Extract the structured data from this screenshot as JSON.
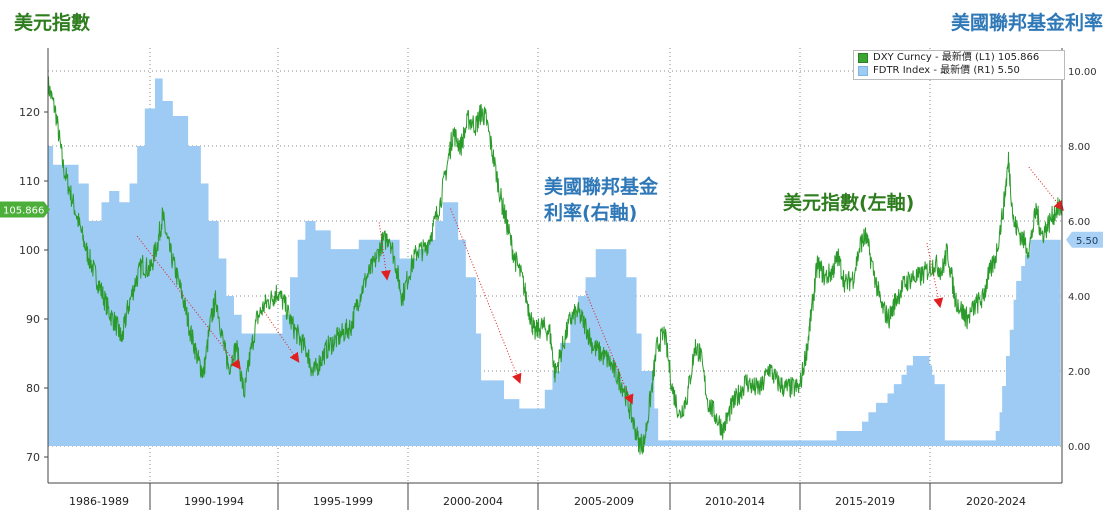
{
  "titles": {
    "left": "美元指數",
    "right": "美國聯邦基金利率"
  },
  "annotations": {
    "fed_line1": "美國聯邦基金",
    "fed_line2": "利率(右軸)",
    "dxy": "美元指數(左軸)"
  },
  "legend": {
    "dxy": "DXY Curncy - 最新價 (L1) 105.866",
    "fdtr": "FDTR Index - 最新價 (R1) 5.50"
  },
  "colors": {
    "dxy_line": "#2a9a2a",
    "fdtr_fill": "#9ecbf3",
    "arrow": "#e02020",
    "left_title": "#2e7d1e",
    "right_title": "#2f78b8"
  },
  "chart_data": {
    "type": "line",
    "xrange": [
      1985,
      2024.8
    ],
    "x_period_labels": [
      "1986-1989",
      "1990-1994",
      "1995-1999",
      "2000-2004",
      "2005-2009",
      "2010-2014",
      "2015-2019",
      "2020-2024"
    ],
    "left_axis": {
      "ticks": [
        "70",
        "80",
        "90",
        "100",
        "110",
        "120"
      ],
      "range": [
        70,
        126
      ]
    },
    "right_axis": {
      "ticks": [
        "0.00",
        "2.00",
        "4.00",
        "6.00",
        "8.00",
        "10.00"
      ],
      "range": [
        0,
        10
      ]
    },
    "last_value_badges": {
      "dxy": "105.866",
      "fdtr": "5.50"
    },
    "series": [
      {
        "name": "DXY Curncy",
        "axis": "left",
        "points": [
          [
            1985.0,
            124
          ],
          [
            1985.3,
            120
          ],
          [
            1985.6,
            112
          ],
          [
            1985.9,
            108
          ],
          [
            1986.2,
            104
          ],
          [
            1986.5,
            100
          ],
          [
            1986.8,
            97
          ],
          [
            1987.1,
            94
          ],
          [
            1987.4,
            91
          ],
          [
            1987.7,
            89
          ],
          [
            1987.9,
            87
          ],
          [
            1988.1,
            91
          ],
          [
            1988.4,
            95
          ],
          [
            1988.7,
            98
          ],
          [
            1989.0,
            97
          ],
          [
            1989.3,
            101
          ],
          [
            1989.5,
            105
          ],
          [
            1989.7,
            101
          ],
          [
            1990.0,
            97
          ],
          [
            1990.3,
            93
          ],
          [
            1990.6,
            88
          ],
          [
            1990.9,
            84
          ],
          [
            1991.1,
            82
          ],
          [
            1991.4,
            90
          ],
          [
            1991.6,
            93
          ],
          [
            1991.9,
            86
          ],
          [
            1992.1,
            83
          ],
          [
            1992.4,
            86
          ],
          [
            1992.7,
            79
          ],
          [
            1992.9,
            84
          ],
          [
            1993.2,
            90
          ],
          [
            1993.5,
            92
          ],
          [
            1993.8,
            93
          ],
          [
            1994.0,
            94
          ],
          [
            1994.3,
            92
          ],
          [
            1994.6,
            89
          ],
          [
            1994.9,
            87
          ],
          [
            1995.2,
            85
          ],
          [
            1995.4,
            82
          ],
          [
            1995.7,
            84
          ],
          [
            1996.0,
            86
          ],
          [
            1996.3,
            87
          ],
          [
            1996.6,
            88
          ],
          [
            1996.9,
            89
          ],
          [
            1997.2,
            93
          ],
          [
            1997.5,
            96
          ],
          [
            1997.8,
            98
          ],
          [
            1998.1,
            101
          ],
          [
            1998.4,
            102
          ],
          [
            1998.7,
            97
          ],
          [
            1998.9,
            93
          ],
          [
            1999.2,
            97
          ],
          [
            1999.5,
            100
          ],
          [
            1999.8,
            100
          ],
          [
            2000.1,
            103
          ],
          [
            2000.4,
            107
          ],
          [
            2000.7,
            113
          ],
          [
            2000.9,
            117
          ],
          [
            2001.2,
            115
          ],
          [
            2001.5,
            119
          ],
          [
            2001.8,
            118
          ],
          [
            2002.0,
            120
          ],
          [
            2002.2,
            119
          ],
          [
            2002.5,
            113
          ],
          [
            2002.8,
            107
          ],
          [
            2003.0,
            104
          ],
          [
            2003.3,
            99
          ],
          [
            2003.6,
            96
          ],
          [
            2003.9,
            91
          ],
          [
            2004.1,
            88
          ],
          [
            2004.4,
            89
          ],
          [
            2004.7,
            88
          ],
          [
            2004.9,
            82
          ],
          [
            2005.2,
            86
          ],
          [
            2005.5,
            90
          ],
          [
            2005.8,
            91
          ],
          [
            2006.1,
            89
          ],
          [
            2006.4,
            86
          ],
          [
            2006.7,
            85
          ],
          [
            2007.0,
            84
          ],
          [
            2007.3,
            82
          ],
          [
            2007.6,
            80
          ],
          [
            2007.9,
            76
          ],
          [
            2008.2,
            72
          ],
          [
            2008.4,
            72
          ],
          [
            2008.7,
            80
          ],
          [
            2008.9,
            86
          ],
          [
            2009.2,
            88
          ],
          [
            2009.5,
            80
          ],
          [
            2009.8,
            76
          ],
          [
            2010.1,
            79
          ],
          [
            2010.4,
            86
          ],
          [
            2010.6,
            85
          ],
          [
            2010.9,
            78
          ],
          [
            2011.2,
            76
          ],
          [
            2011.5,
            74
          ],
          [
            2011.8,
            77
          ],
          [
            2012.1,
            79
          ],
          [
            2012.4,
            81
          ],
          [
            2012.7,
            80
          ],
          [
            2013.0,
            80
          ],
          [
            2013.3,
            83
          ],
          [
            2013.6,
            81
          ],
          [
            2013.9,
            80
          ],
          [
            2014.2,
            80
          ],
          [
            2014.5,
            80
          ],
          [
            2014.8,
            86
          ],
          [
            2015.0,
            92
          ],
          [
            2015.2,
            98
          ],
          [
            2015.5,
            96
          ],
          [
            2015.8,
            97
          ],
          [
            2016.0,
            99
          ],
          [
            2016.3,
            95
          ],
          [
            2016.6,
            96
          ],
          [
            2016.9,
            101
          ],
          [
            2017.1,
            102
          ],
          [
            2017.4,
            97
          ],
          [
            2017.7,
            92
          ],
          [
            2018.0,
            90
          ],
          [
            2018.3,
            93
          ],
          [
            2018.6,
            95
          ],
          [
            2018.9,
            96
          ],
          [
            2019.2,
            96
          ],
          [
            2019.5,
            97
          ],
          [
            2019.8,
            98
          ],
          [
            2020.1,
            97
          ],
          [
            2020.3,
            100
          ],
          [
            2020.6,
            93
          ],
          [
            2020.9,
            91
          ],
          [
            2021.1,
            90
          ],
          [
            2021.4,
            92
          ],
          [
            2021.7,
            93
          ],
          [
            2021.9,
            96
          ],
          [
            2022.2,
            99
          ],
          [
            2022.5,
            106
          ],
          [
            2022.7,
            113
          ],
          [
            2022.9,
            104
          ],
          [
            2023.2,
            102
          ],
          [
            2023.5,
            100
          ],
          [
            2023.8,
            106
          ],
          [
            2024.0,
            102
          ],
          [
            2024.3,
            104
          ],
          [
            2024.6,
            106
          ],
          [
            2024.8,
            105.9
          ]
        ]
      },
      {
        "name": "FDTR Index",
        "axis": "right",
        "steps": [
          [
            1985.0,
            8.0
          ],
          [
            1985.2,
            7.5
          ],
          [
            1986.2,
            7.0
          ],
          [
            1986.6,
            6.0
          ],
          [
            1987.1,
            6.5
          ],
          [
            1987.4,
            6.8
          ],
          [
            1987.8,
            6.5
          ],
          [
            1988.2,
            7.0
          ],
          [
            1988.5,
            8.0
          ],
          [
            1988.8,
            9.0
          ],
          [
            1989.2,
            9.8
          ],
          [
            1989.5,
            9.2
          ],
          [
            1989.9,
            8.8
          ],
          [
            1990.5,
            8.0
          ],
          [
            1991.0,
            7.0
          ],
          [
            1991.3,
            6.0
          ],
          [
            1991.7,
            5.0
          ],
          [
            1992.0,
            4.0
          ],
          [
            1992.3,
            3.5
          ],
          [
            1992.6,
            3.0
          ],
          [
            1994.2,
            3.5
          ],
          [
            1994.5,
            4.5
          ],
          [
            1994.8,
            5.5
          ],
          [
            1995.1,
            6.0
          ],
          [
            1995.5,
            5.75
          ],
          [
            1996.1,
            5.25
          ],
          [
            1997.2,
            5.5
          ],
          [
            1998.8,
            5.0
          ],
          [
            1999.5,
            5.25
          ],
          [
            1999.9,
            5.5
          ],
          [
            2000.2,
            6.0
          ],
          [
            2000.5,
            6.5
          ],
          [
            2001.1,
            5.5
          ],
          [
            2001.4,
            4.5
          ],
          [
            2001.8,
            3.0
          ],
          [
            2002.0,
            1.75
          ],
          [
            2002.9,
            1.25
          ],
          [
            2003.5,
            1.0
          ],
          [
            2004.5,
            1.5
          ],
          [
            2004.8,
            2.0
          ],
          [
            2005.1,
            2.75
          ],
          [
            2005.5,
            3.5
          ],
          [
            2005.8,
            4.0
          ],
          [
            2006.1,
            4.5
          ],
          [
            2006.5,
            5.25
          ],
          [
            2007.7,
            4.5
          ],
          [
            2008.1,
            3.0
          ],
          [
            2008.3,
            2.0
          ],
          [
            2008.8,
            1.0
          ],
          [
            2008.95,
            0.15
          ],
          [
            2015.95,
            0.4
          ],
          [
            2016.95,
            0.65
          ],
          [
            2017.2,
            0.9
          ],
          [
            2017.5,
            1.15
          ],
          [
            2017.95,
            1.4
          ],
          [
            2018.2,
            1.65
          ],
          [
            2018.5,
            1.9
          ],
          [
            2018.7,
            2.15
          ],
          [
            2018.95,
            2.4
          ],
          [
            2019.6,
            2.15
          ],
          [
            2019.7,
            1.9
          ],
          [
            2019.8,
            1.65
          ],
          [
            2020.2,
            0.15
          ],
          [
            2022.2,
            0.4
          ],
          [
            2022.35,
            0.9
          ],
          [
            2022.45,
            1.6
          ],
          [
            2022.6,
            2.4
          ],
          [
            2022.75,
            3.1
          ],
          [
            2022.9,
            3.9
          ],
          [
            2023.0,
            4.4
          ],
          [
            2023.2,
            4.8
          ],
          [
            2023.35,
            5.1
          ],
          [
            2023.55,
            5.5
          ],
          [
            2024.75,
            5.5
          ]
        ]
      }
    ],
    "annotated_arrows": [
      [
        [
          1988.5,
          102
        ],
        [
          1992.5,
          83
        ]
      ],
      [
        [
          1993.5,
          91
        ],
        [
          1994.8,
          84
        ]
      ],
      [
        [
          1998.0,
          104
        ],
        [
          1998.3,
          96
        ]
      ],
      [
        [
          2000.8,
          106
        ],
        [
          2003.5,
          81
        ]
      ],
      [
        [
          2006.1,
          94
        ],
        [
          2007.9,
          78
        ]
      ],
      [
        [
          2019.5,
          101
        ],
        [
          2020.0,
          92
        ]
      ],
      [
        [
          2023.5,
          112
        ],
        [
          2025.2,
          106
        ]
      ]
    ]
  }
}
